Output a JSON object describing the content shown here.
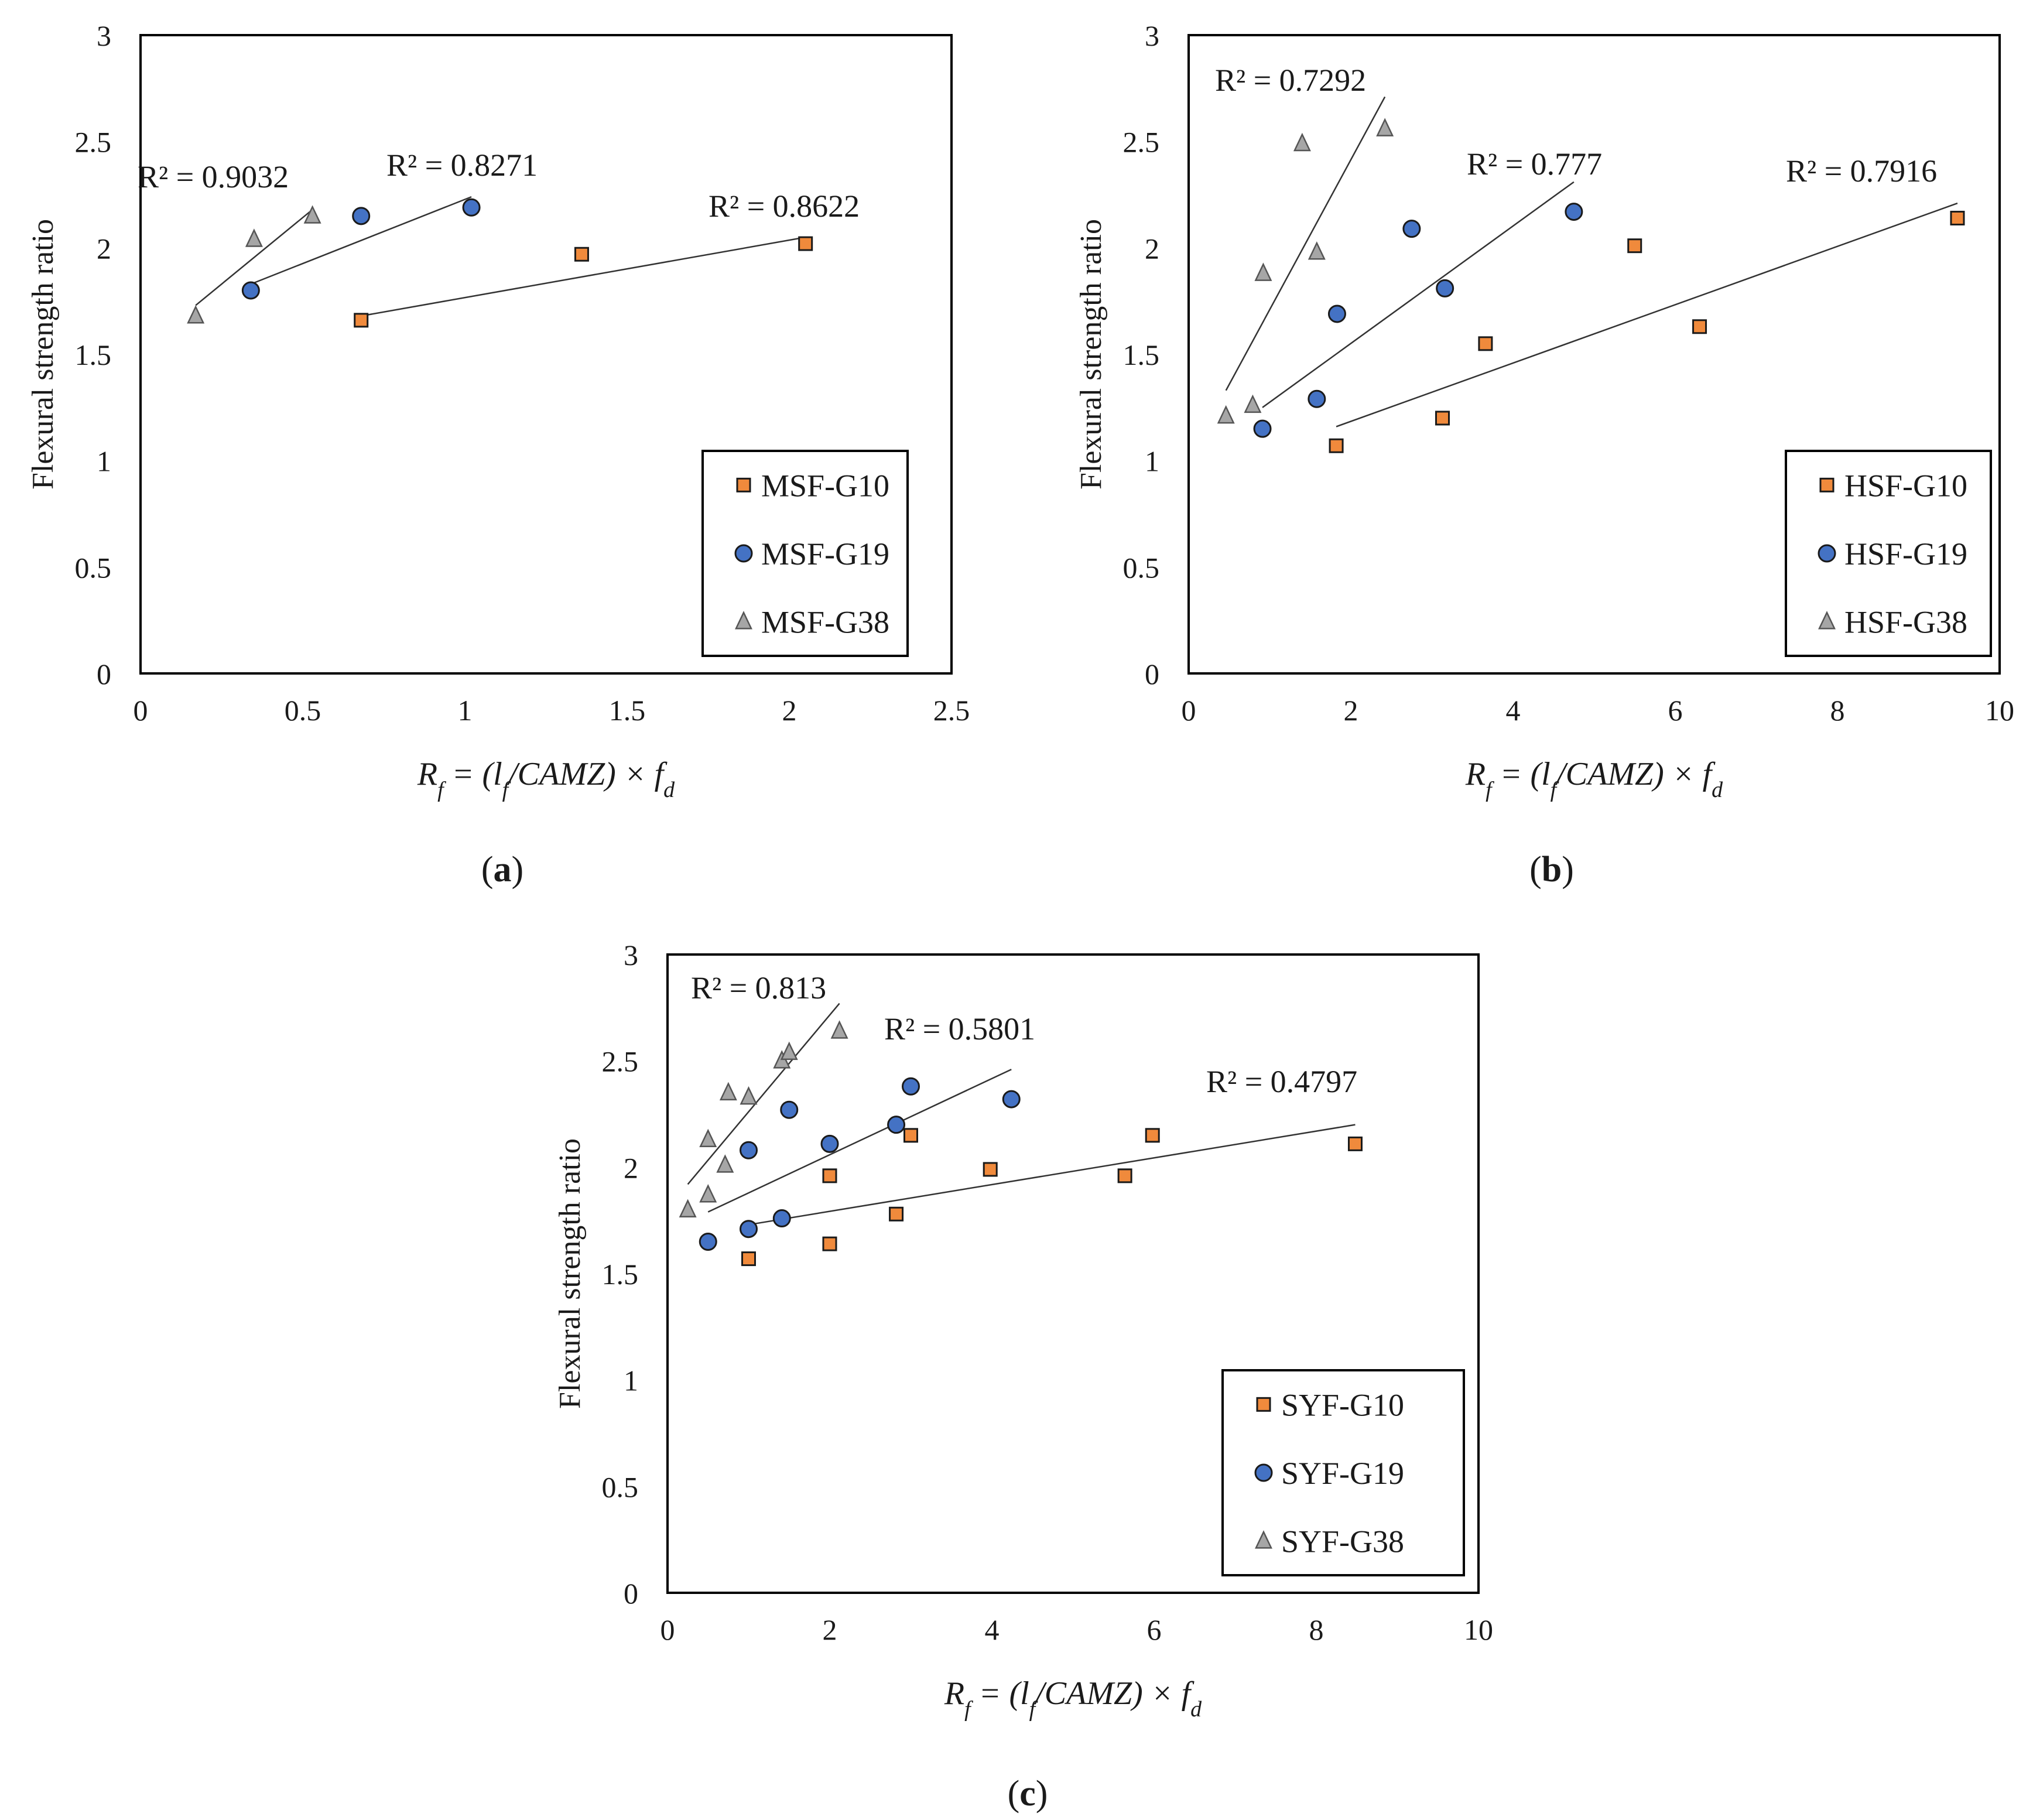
{
  "figure": {
    "captions": [
      "a",
      "b",
      "c"
    ]
  },
  "chart_data": [
    {
      "type": "scatter",
      "panel": "a",
      "ylabel": "Flexural strength ratio",
      "xlabel": "R_f = (l_f/CAMZ) × f_d",
      "xlim": [
        0,
        2.5
      ],
      "ylim": [
        0,
        3
      ],
      "xticks": [
        "0",
        "0.5",
        "1",
        "1.5",
        "2",
        "2.5"
      ],
      "yticks": [
        "0",
        "0.5",
        "1",
        "1.5",
        "2",
        "2.5",
        "3"
      ],
      "legend_position": "bottom-right",
      "series": [
        {
          "name": "MSF-G10",
          "marker": "square",
          "color": "#F08A3C",
          "x": [
            0.68,
            1.36,
            2.05
          ],
          "y": [
            1.66,
            1.97,
            2.02
          ],
          "trend": {
            "x": [
              0.68,
              2.05
            ],
            "y": [
              1.68,
              2.05
            ]
          },
          "r2": "R² = 0.8622"
        },
        {
          "name": "MSF-G19",
          "marker": "circle",
          "color": "#4472C4",
          "x": [
            0.34,
            0.68,
            1.02
          ],
          "y": [
            1.8,
            2.15,
            2.19
          ],
          "trend": {
            "x": [
              0.34,
              1.02
            ],
            "y": [
              1.83,
              2.24
            ]
          },
          "r2": "R² = 0.8271"
        },
        {
          "name": "MSF-G38",
          "marker": "triangle",
          "color": "#A6A6A6",
          "x": [
            0.17,
            0.35,
            0.53
          ],
          "y": [
            1.68,
            2.04,
            2.15
          ],
          "trend": {
            "x": [
              0.17,
              0.53
            ],
            "y": [
              1.73,
              2.18
            ]
          },
          "r2": "R² = 0.9032"
        }
      ]
    },
    {
      "type": "scatter",
      "panel": "b",
      "ylabel": "Flexural strength ratio",
      "xlabel": "R_f = (l_f/CAMZ) × f_d",
      "xlim": [
        0,
        10
      ],
      "ylim": [
        0,
        3
      ],
      "xticks": [
        "0",
        "2",
        "4",
        "6",
        "8",
        "10"
      ],
      "yticks": [
        "0",
        "0.5",
        "1",
        "1.5",
        "2",
        "2.5",
        "3"
      ],
      "legend_position": "bottom-right",
      "series": [
        {
          "name": "HSF-G10",
          "marker": "square",
          "color": "#F08A3C",
          "x": [
            1.82,
            3.13,
            3.66,
            5.5,
            6.3,
            9.48
          ],
          "y": [
            1.07,
            1.2,
            1.55,
            2.01,
            1.63,
            2.14
          ],
          "trend": {
            "x": [
              1.82,
              9.48
            ],
            "y": [
              1.16,
              2.21
            ]
          },
          "r2": "R² = 0.7916"
        },
        {
          "name": "HSF-G19",
          "marker": "circle",
          "color": "#4472C4",
          "x": [
            0.91,
            1.58,
            1.83,
            2.75,
            3.16,
            4.75
          ],
          "y": [
            1.15,
            1.29,
            1.69,
            2.09,
            1.81,
            2.17
          ],
          "trend": {
            "x": [
              0.91,
              4.75
            ],
            "y": [
              1.25,
              2.31
            ]
          },
          "r2": "R² = 0.777"
        },
        {
          "name": "HSF-G38",
          "marker": "triangle",
          "color": "#A6A6A6",
          "x": [
            0.46,
            0.79,
            0.92,
            1.4,
            1.58,
            2.42
          ],
          "y": [
            1.21,
            1.26,
            1.88,
            2.49,
            1.98,
            2.56
          ],
          "trend": {
            "x": [
              0.46,
              2.42
            ],
            "y": [
              1.33,
              2.71
            ]
          },
          "r2": "R² = 0.7292"
        }
      ]
    },
    {
      "type": "scatter",
      "panel": "c",
      "ylabel": "Flexural strength ratio",
      "xlabel": "R_f = (l_f/CAMZ) × f_d",
      "xlim": [
        0,
        10
      ],
      "ylim": [
        0,
        3
      ],
      "xticks": [
        "0",
        "2",
        "4",
        "6",
        "8",
        "10"
      ],
      "yticks": [
        "0",
        "0.5",
        "1",
        "1.5",
        "2",
        "2.5",
        "3"
      ],
      "legend_position": "bottom-right",
      "series": [
        {
          "name": "SYF-G10",
          "marker": "square",
          "color": "#F08A3C",
          "x": [
            1.0,
            2.0,
            2.0,
            2.82,
            3.0,
            3.98,
            5.64,
            5.98,
            8.48
          ],
          "y": [
            1.57,
            1.64,
            1.96,
            1.78,
            2.15,
            1.99,
            1.96,
            2.15,
            2.11
          ],
          "trend": {
            "x": [
              1.0,
              8.48
            ],
            "y": [
              1.73,
              2.2
            ]
          },
          "r2": "R² = 0.4797"
        },
        {
          "name": "SYF-G19",
          "marker": "circle",
          "color": "#4472C4",
          "x": [
            0.5,
            1.0,
            1.0,
            1.41,
            1.5,
            2.0,
            2.82,
            3.0,
            4.24
          ],
          "y": [
            1.65,
            1.71,
            2.08,
            1.76,
            2.27,
            2.11,
            2.2,
            2.38,
            2.32
          ],
          "trend": {
            "x": [
              0.5,
              4.24
            ],
            "y": [
              1.79,
              2.46
            ]
          },
          "r2": "R² = 0.5801"
        },
        {
          "name": "SYF-G38",
          "marker": "triangle",
          "color": "#A6A6A6",
          "x": [
            0.25,
            0.5,
            0.5,
            0.71,
            0.75,
            1.0,
            1.41,
            1.5,
            2.12
          ],
          "y": [
            1.8,
            1.87,
            2.13,
            2.01,
            2.35,
            2.33,
            2.5,
            2.54,
            2.64
          ],
          "trend": {
            "x": [
              0.25,
              2.12
            ],
            "y": [
              1.92,
              2.77
            ]
          },
          "r2": "R² = 0.813"
        }
      ]
    }
  ]
}
